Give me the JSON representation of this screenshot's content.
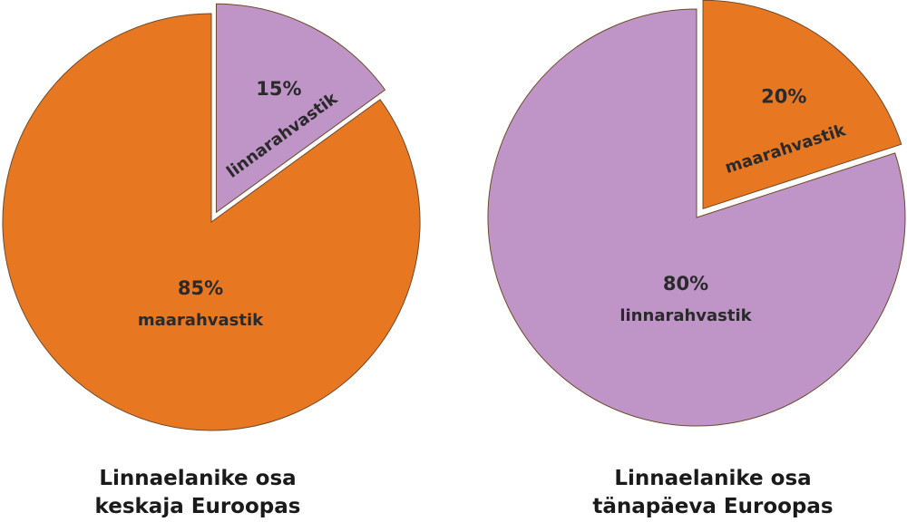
{
  "chart_data": [
    {
      "type": "pie",
      "title_lines": [
        "Linnaelanike osa",
        "keskaja Euroopas"
      ],
      "slices": [
        {
          "label": "linnarahvastik",
          "value": 15,
          "value_label": "15%",
          "color": "#bf94c7",
          "exploded": true
        },
        {
          "label": "maarahvastik",
          "value": 85,
          "value_label": "85%",
          "color": "#e87722",
          "exploded": false
        }
      ]
    },
    {
      "type": "pie",
      "title_lines": [
        "Linnaelanike osa",
        "tänapäeva Euroopas"
      ],
      "slices": [
        {
          "label": "maarahvastik",
          "value": 20,
          "value_label": "20%",
          "color": "#e87722",
          "exploded": true
        },
        {
          "label": "linnarahvastik",
          "value": 80,
          "value_label": "80%",
          "color": "#bf94c7",
          "exploded": false
        }
      ]
    }
  ]
}
